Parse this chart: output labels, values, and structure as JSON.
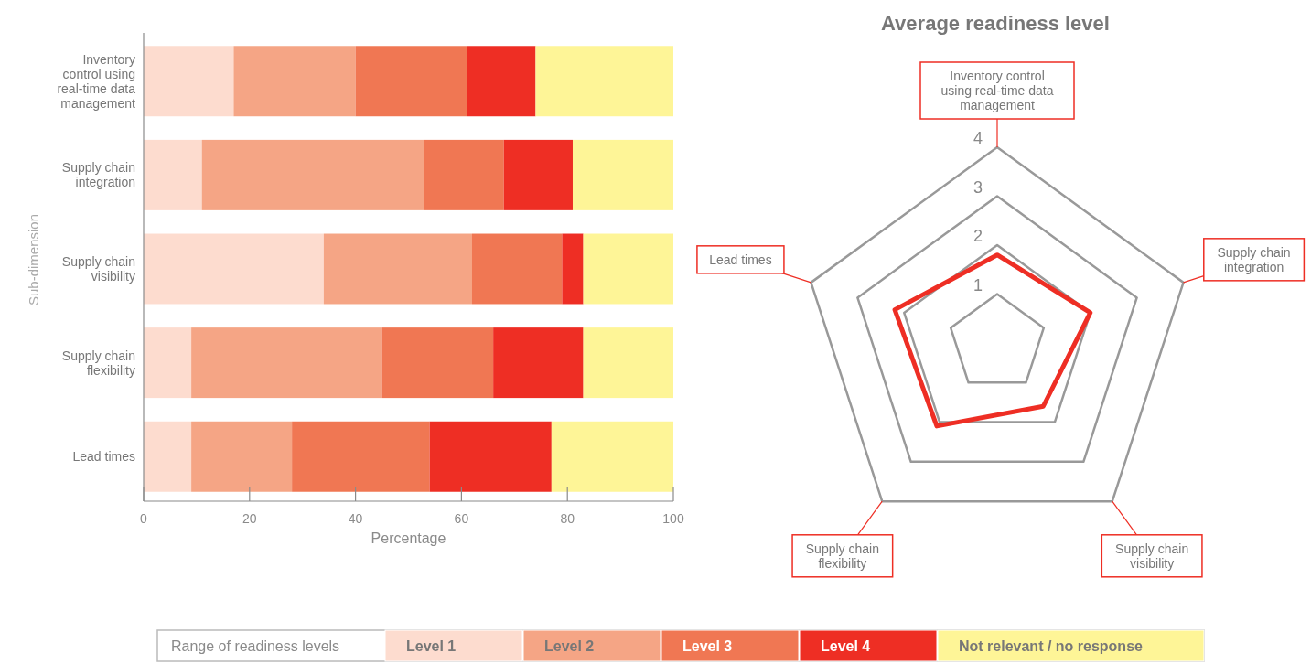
{
  "chart_data": [
    {
      "type": "bar",
      "orientation": "horizontal",
      "stacked": true,
      "categories": [
        "Inventory control using real-time data management",
        "Supply chain integration",
        "Supply chain visibility",
        "Supply chain flexibility",
        "Lead times"
      ],
      "series": [
        {
          "name": "Level 1",
          "color": "#fddccf",
          "values": [
            17,
            11,
            34,
            9,
            9
          ]
        },
        {
          "name": "Level 2",
          "color": "#f5a585",
          "values": [
            23,
            42,
            28,
            36,
            19
          ]
        },
        {
          "name": "Level 3",
          "color": "#f07753",
          "values": [
            21,
            15,
            17,
            21,
            26
          ]
        },
        {
          "name": "Level 4",
          "color": "#ee2e24",
          "values": [
            13,
            13,
            4,
            17,
            23
          ]
        },
        {
          "name": "Not relevant / no response",
          "color": "#fef597",
          "values": [
            26,
            19,
            17,
            17,
            23
          ]
        }
      ],
      "xlim": [
        0,
        100
      ],
      "xticks": [
        0,
        20,
        40,
        60,
        80,
        100
      ],
      "xlabel": "Percentage",
      "ylabel": "Sub-dimension",
      "legend": "bottom",
      "legend_title": "Range of readiness levels"
    },
    {
      "type": "radar",
      "title": "Average readiness level",
      "categories": [
        "Inventory control using real-time data management",
        "Supply chain integration",
        "Supply chain visibility",
        "Supply chain flexibility",
        "Lead times"
      ],
      "series": [
        {
          "color": "#ee2e24",
          "values": [
            1.8,
            2.0,
            1.6,
            2.1,
            2.2
          ]
        }
      ],
      "ylim": [
        0,
        4
      ],
      "yticks": [
        1,
        2,
        3,
        4
      ],
      "grid": true
    }
  ]
}
